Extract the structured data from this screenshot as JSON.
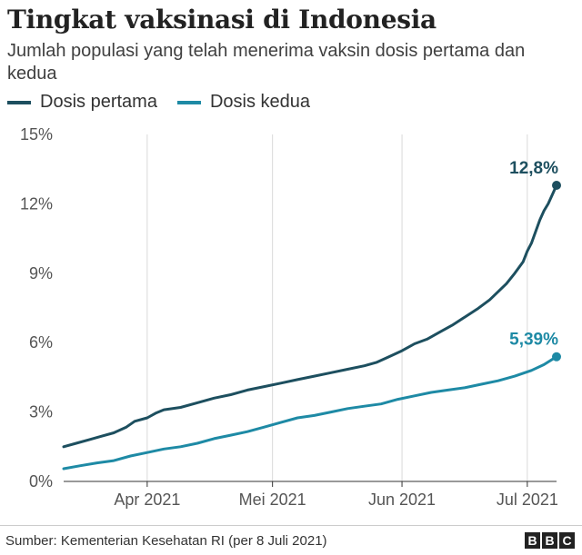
{
  "header": {
    "title": "Tingkat vaksinasi di Indonesia",
    "subtitle": "Jumlah populasi yang telah menerima vaksin dosis pertama dan kedua"
  },
  "footer": {
    "source": "Sumber: Kementerian Kesehatan RI (per 8 Juli 2021)",
    "logo_letters": [
      "B",
      "B",
      "C"
    ]
  },
  "colors": {
    "dosis_pertama": "#1d4f5f",
    "dosis_kedua": "#1e8aa5",
    "grid": "#d9d9d9",
    "axis": "#333333"
  },
  "chart_data": {
    "type": "line",
    "title": "Tingkat vaksinasi di Indonesia",
    "x_range": [
      "2021-03-12",
      "2021-07-08"
    ],
    "ylim": [
      0,
      15
    ],
    "y_ticks": [
      0,
      3,
      6,
      9,
      12,
      15
    ],
    "y_tick_labels": [
      "0%",
      "3%",
      "6%",
      "9%",
      "12%",
      "15%"
    ],
    "x_ticks": [
      "2021-04-01",
      "2021-05-01",
      "2021-06-01",
      "2021-07-01"
    ],
    "x_tick_labels": [
      "Apr 2021",
      "Mei 2021",
      "Jun 2021",
      "Jul 2021"
    ],
    "grid": "vertical",
    "legend_position": "top-left",
    "series": [
      {
        "name": "Dosis pertama",
        "end_label": "12,8%",
        "points": [
          [
            "2021-03-12",
            1.5
          ],
          [
            "2021-03-15",
            1.65
          ],
          [
            "2021-03-18",
            1.8
          ],
          [
            "2021-03-21",
            1.95
          ],
          [
            "2021-03-24",
            2.1
          ],
          [
            "2021-03-27",
            2.35
          ],
          [
            "2021-03-29",
            2.6
          ],
          [
            "2021-04-01",
            2.75
          ],
          [
            "2021-04-03",
            2.95
          ],
          [
            "2021-04-05",
            3.1
          ],
          [
            "2021-04-09",
            3.2
          ],
          [
            "2021-04-13",
            3.4
          ],
          [
            "2021-04-17",
            3.6
          ],
          [
            "2021-04-21",
            3.75
          ],
          [
            "2021-04-25",
            3.95
          ],
          [
            "2021-04-29",
            4.1
          ],
          [
            "2021-05-03",
            4.25
          ],
          [
            "2021-05-07",
            4.4
          ],
          [
            "2021-05-11",
            4.55
          ],
          [
            "2021-05-15",
            4.7
          ],
          [
            "2021-05-19",
            4.85
          ],
          [
            "2021-05-23",
            5.0
          ],
          [
            "2021-05-26",
            5.15
          ],
          [
            "2021-05-29",
            5.4
          ],
          [
            "2021-06-01",
            5.65
          ],
          [
            "2021-06-04",
            5.95
          ],
          [
            "2021-06-07",
            6.15
          ],
          [
            "2021-06-10",
            6.45
          ],
          [
            "2021-06-13",
            6.75
          ],
          [
            "2021-06-16",
            7.1
          ],
          [
            "2021-06-19",
            7.45
          ],
          [
            "2021-06-22",
            7.85
          ],
          [
            "2021-06-24",
            8.2
          ],
          [
            "2021-06-26",
            8.55
          ],
          [
            "2021-06-28",
            9.0
          ],
          [
            "2021-06-30",
            9.5
          ],
          [
            "2021-07-01",
            9.95
          ],
          [
            "2021-07-02",
            10.3
          ],
          [
            "2021-07-03",
            10.8
          ],
          [
            "2021-07-04",
            11.3
          ],
          [
            "2021-07-05",
            11.7
          ],
          [
            "2021-07-06",
            12.0
          ],
          [
            "2021-07-07",
            12.4
          ],
          [
            "2021-07-08",
            12.8
          ]
        ]
      },
      {
        "name": "Dosis kedua",
        "end_label": "5,39%",
        "points": [
          [
            "2021-03-12",
            0.55
          ],
          [
            "2021-03-16",
            0.68
          ],
          [
            "2021-03-20",
            0.8
          ],
          [
            "2021-03-24",
            0.9
          ],
          [
            "2021-03-28",
            1.1
          ],
          [
            "2021-04-01",
            1.25
          ],
          [
            "2021-04-05",
            1.4
          ],
          [
            "2021-04-09",
            1.5
          ],
          [
            "2021-04-13",
            1.65
          ],
          [
            "2021-04-17",
            1.85
          ],
          [
            "2021-04-21",
            2.0
          ],
          [
            "2021-04-25",
            2.15
          ],
          [
            "2021-04-29",
            2.35
          ],
          [
            "2021-05-03",
            2.55
          ],
          [
            "2021-05-07",
            2.75
          ],
          [
            "2021-05-11",
            2.85
          ],
          [
            "2021-05-15",
            3.0
          ],
          [
            "2021-05-19",
            3.15
          ],
          [
            "2021-05-23",
            3.25
          ],
          [
            "2021-05-27",
            3.35
          ],
          [
            "2021-05-31",
            3.55
          ],
          [
            "2021-06-04",
            3.7
          ],
          [
            "2021-06-08",
            3.85
          ],
          [
            "2021-06-12",
            3.95
          ],
          [
            "2021-06-16",
            4.05
          ],
          [
            "2021-06-20",
            4.2
          ],
          [
            "2021-06-24",
            4.35
          ],
          [
            "2021-06-28",
            4.55
          ],
          [
            "2021-07-02",
            4.8
          ],
          [
            "2021-07-05",
            5.05
          ],
          [
            "2021-07-08",
            5.39
          ]
        ]
      }
    ]
  }
}
